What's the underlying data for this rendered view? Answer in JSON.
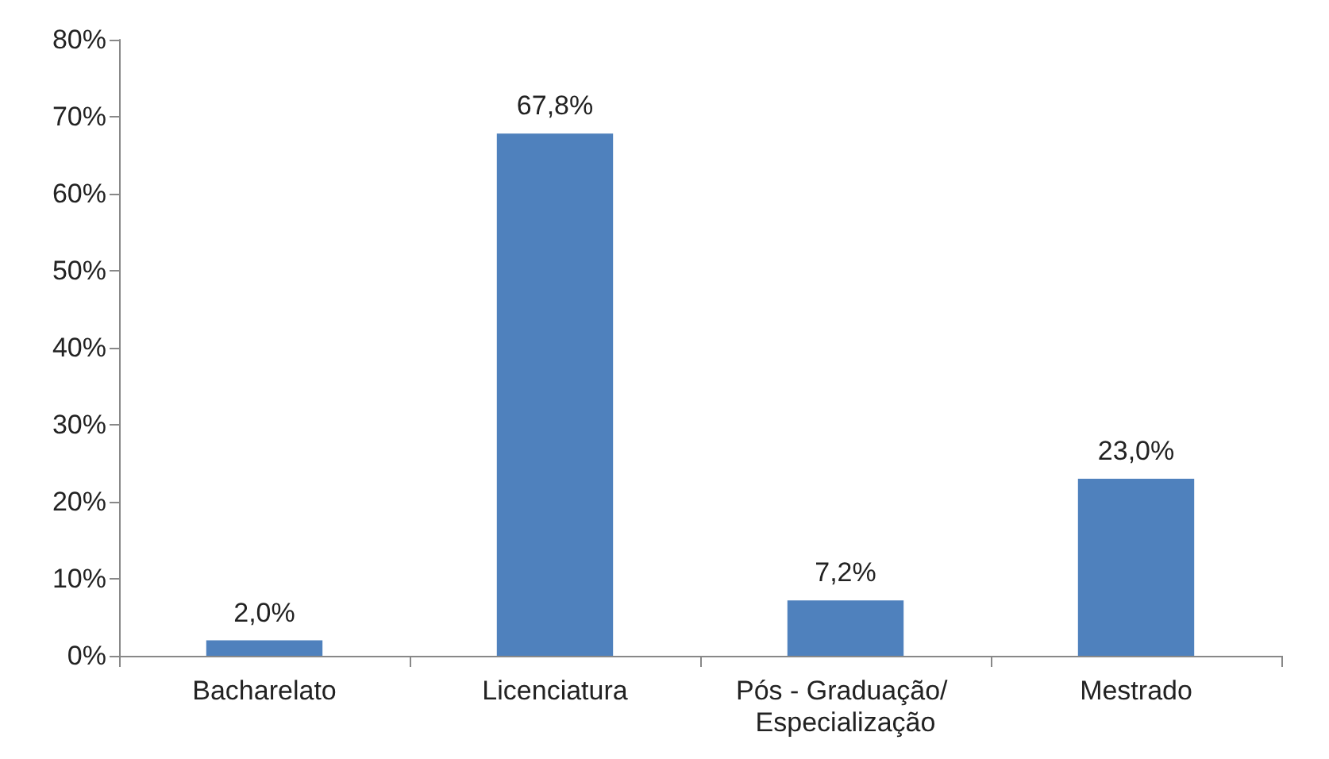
{
  "chart_data": {
    "type": "bar",
    "categories": [
      "Bacharelato",
      "Licenciatura",
      "Pós - Graduação/ Especialização",
      "Mestrado"
    ],
    "values": [
      2.0,
      67.8,
      7.2,
      23.0
    ],
    "value_labels": [
      "2,0%",
      "67,8%",
      "7,2%",
      "23,0%"
    ],
    "color": "#4f81bd",
    "ylim": [
      0,
      80
    ],
    "yticks": [
      {
        "value": 0,
        "label": "0%"
      },
      {
        "value": 10,
        "label": "10%"
      },
      {
        "value": 20,
        "label": "20%"
      },
      {
        "value": 30,
        "label": "30%"
      },
      {
        "value": 40,
        "label": "40%"
      },
      {
        "value": 50,
        "label": "50%"
      },
      {
        "value": 60,
        "label": "60%"
      },
      {
        "value": 70,
        "label": "70%"
      },
      {
        "value": 80,
        "label": "80%"
      }
    ],
    "grid": false
  }
}
